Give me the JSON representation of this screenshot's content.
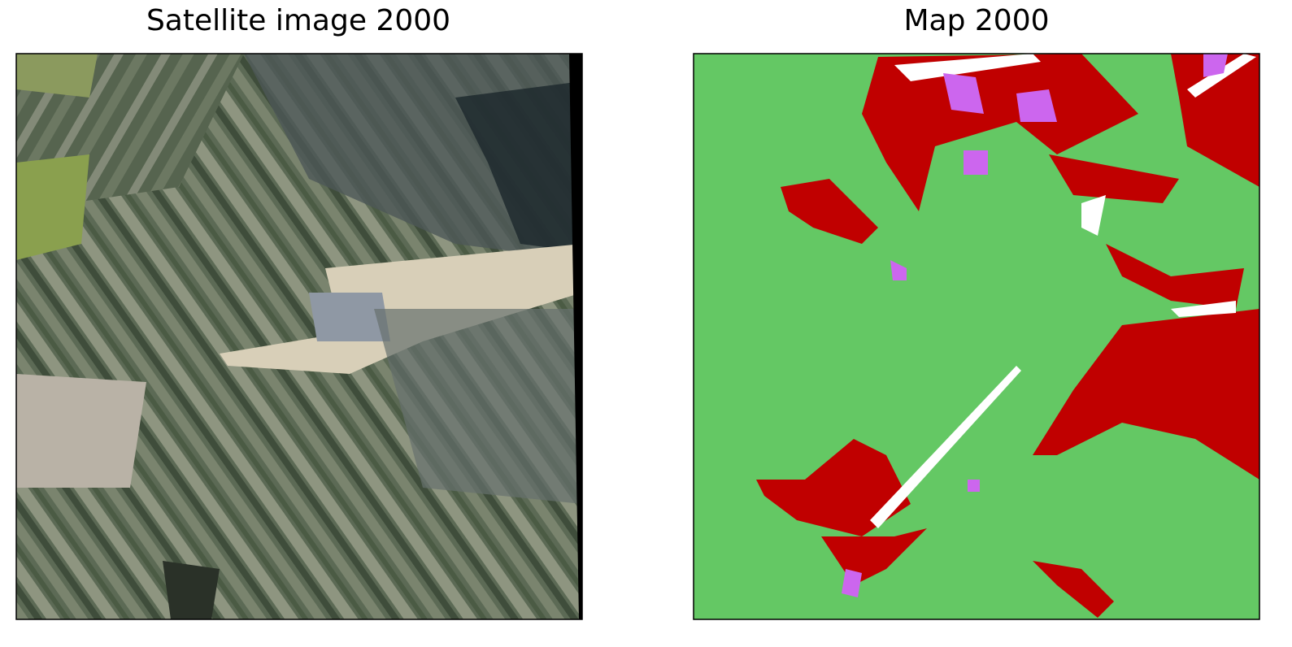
{
  "panels": [
    {
      "title": "Satellite image 2000"
    },
    {
      "title": "Map 2000"
    }
  ]
}
